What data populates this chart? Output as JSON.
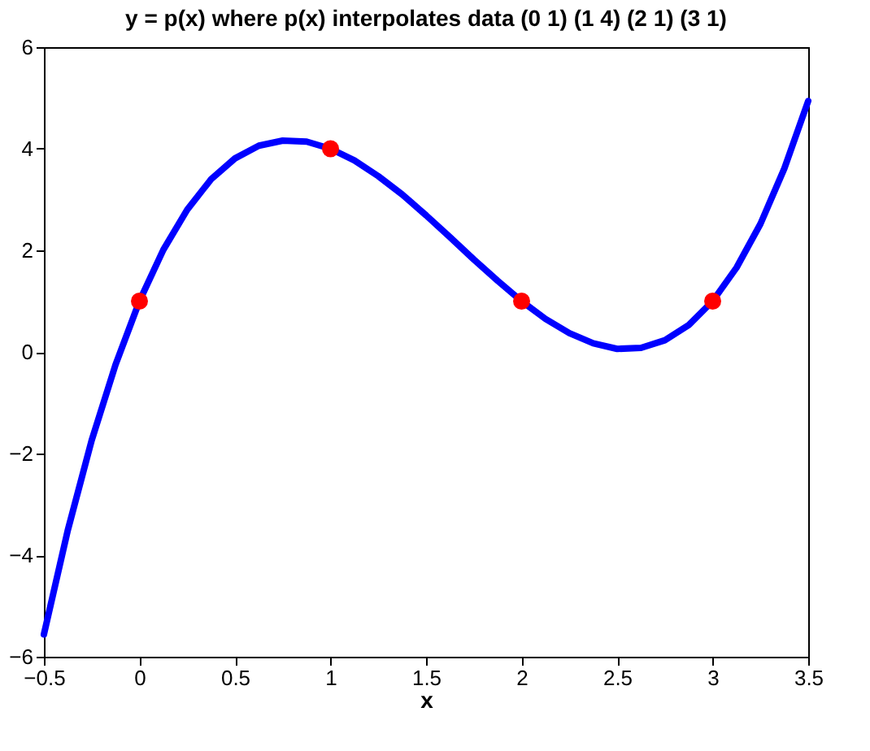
{
  "chart_data": {
    "type": "line",
    "title": "y = p(x) where p(x) interpolates data (0 1) (1 4) (2 1) (3 1)",
    "xlabel": "x",
    "xlim": [
      -0.5,
      3.5
    ],
    "xticks": [
      -0.5,
      0,
      0.5,
      1,
      1.5,
      2,
      2.5,
      3,
      3.5
    ],
    "ylim": [
      -6,
      6
    ],
    "yticks": [
      -6,
      -4,
      -2,
      0,
      2,
      4,
      6
    ],
    "grid": false,
    "series": [
      {
        "color": "#0000ff",
        "marker": "none",
        "line_style": "solid",
        "x": [
          -0.5,
          -0.375,
          -0.25,
          -0.125,
          0,
          0.125,
          0.25,
          0.375,
          0.5,
          0.625,
          0.75,
          0.875,
          1,
          1.125,
          1.25,
          1.375,
          1.5,
          1.625,
          1.75,
          1.875,
          2,
          2.125,
          2.25,
          2.375,
          2.5,
          2.625,
          2.75,
          2.875,
          3,
          3.125,
          3.25,
          3.375,
          3.5
        ],
        "values": [
          -5.56,
          -3.51,
          -1.74,
          -0.25,
          1,
          2.01,
          2.8,
          3.4,
          3.81,
          4.06,
          4.16,
          4.14,
          4,
          3.77,
          3.46,
          3.1,
          2.69,
          2.26,
          1.82,
          1.4,
          1,
          0.65,
          0.37,
          0.17,
          0.06,
          0.08,
          0.23,
          0.53,
          1,
          1.66,
          2.52,
          3.61,
          4.94
        ]
      },
      {
        "type": "scatter",
        "color": "#ff0000",
        "marker": "circle",
        "x": [
          0,
          1,
          2,
          3
        ],
        "values": [
          1,
          4,
          1,
          1
        ]
      }
    ]
  }
}
